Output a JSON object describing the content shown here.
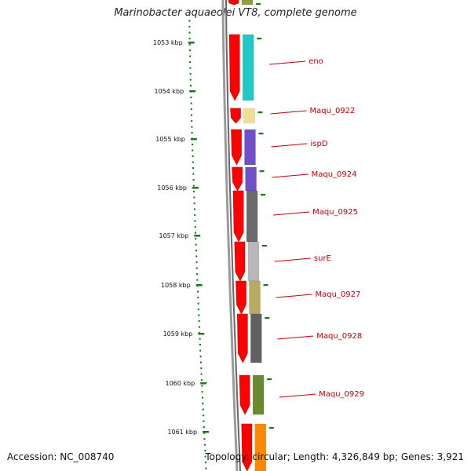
{
  "title": "Marinobacter aquaeolei VT8, complete genome",
  "footer": {
    "accession": "Accession: NC_008740",
    "summary": "Topology: circular; Length: 4,326,849 bp; Genes: 3,921"
  },
  "colors": {
    "strand_arrow": "#ff0000",
    "label": "#c00000",
    "tick": "#1a7a1a",
    "backbone": "#888888"
  },
  "ticks": [
    "1053 kbp",
    "1054 kbp",
    "1055 kbp",
    "1056 kbp",
    "1057 kbp",
    "1058 kbp",
    "1059 kbp",
    "1060 kbp",
    "1061 kbp"
  ],
  "genes": [
    {
      "name": "",
      "color": "#8aa040"
    },
    {
      "name": "eno",
      "color": "#20c8c8"
    },
    {
      "name": "Maqu_0922",
      "color": "#eee090"
    },
    {
      "name": "ispD",
      "color": "#7050c8"
    },
    {
      "name": "Maqu_0924",
      "color": "#7050c8"
    },
    {
      "name": "Maqu_0925",
      "color": "#6a6a6a"
    },
    {
      "name": "surE",
      "color": "#b8b8b8"
    },
    {
      "name": "Maqu_0927",
      "color": "#b8aa60"
    },
    {
      "name": "Maqu_0928",
      "color": "#606060"
    },
    {
      "name": "Maqu_0929",
      "color": "#6a8a30"
    },
    {
      "name": "",
      "color": "#ff8800"
    }
  ]
}
